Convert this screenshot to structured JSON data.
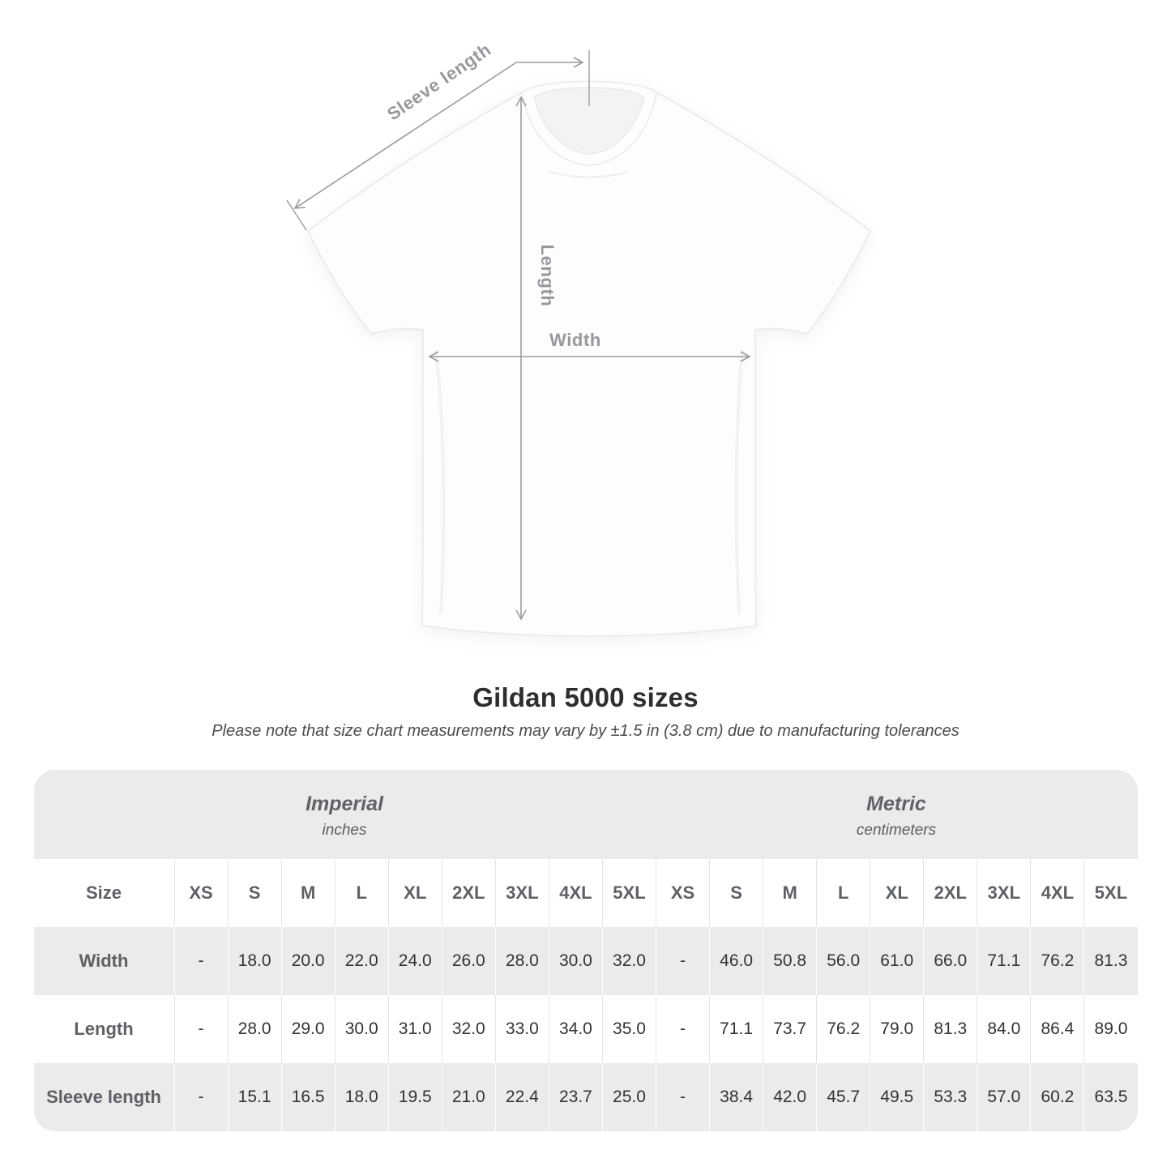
{
  "diagram": {
    "labels": {
      "sleeve_length": "Sleeve length",
      "length": "Length",
      "width": "Width"
    },
    "line_color": "#9b9b9b",
    "label_color": "#97999d"
  },
  "title": "Gildan 5000 sizes",
  "subtitle": "Please note that size chart measurements may vary by ±1.5 in (3.8 cm) due to manufacturing tolerances",
  "table": {
    "groups": [
      {
        "label": "Imperial",
        "sublabel": "inches"
      },
      {
        "label": "Metric",
        "sublabel": "centimeters"
      }
    ],
    "size_header": "Size",
    "sizes": [
      "XS",
      "S",
      "M",
      "L",
      "XL",
      "2XL",
      "3XL",
      "4XL",
      "5XL"
    ],
    "rows": [
      {
        "label": "Width",
        "imperial": [
          "-",
          "18.0",
          "20.0",
          "22.0",
          "24.0",
          "26.0",
          "28.0",
          "30.0",
          "32.0"
        ],
        "metric": [
          "-",
          "46.0",
          "50.8",
          "56.0",
          "61.0",
          "66.0",
          "71.1",
          "76.2",
          "81.3"
        ]
      },
      {
        "label": "Length",
        "imperial": [
          "-",
          "28.0",
          "29.0",
          "30.0",
          "31.0",
          "32.0",
          "33.0",
          "34.0",
          "35.0"
        ],
        "metric": [
          "-",
          "71.1",
          "73.7",
          "76.2",
          "79.0",
          "81.3",
          "84.0",
          "86.4",
          "89.0"
        ]
      },
      {
        "label": "Sleeve length",
        "imperial": [
          "-",
          "15.1",
          "16.5",
          "18.0",
          "19.5",
          "21.0",
          "22.4",
          "23.7",
          "25.0"
        ],
        "metric": [
          "-",
          "38.4",
          "42.0",
          "45.7",
          "49.5",
          "53.3",
          "57.0",
          "60.2",
          "63.5"
        ]
      }
    ],
    "colors": {
      "band": "#ebebeb",
      "header_text": "#5d6165",
      "value_text": "#333333"
    }
  }
}
